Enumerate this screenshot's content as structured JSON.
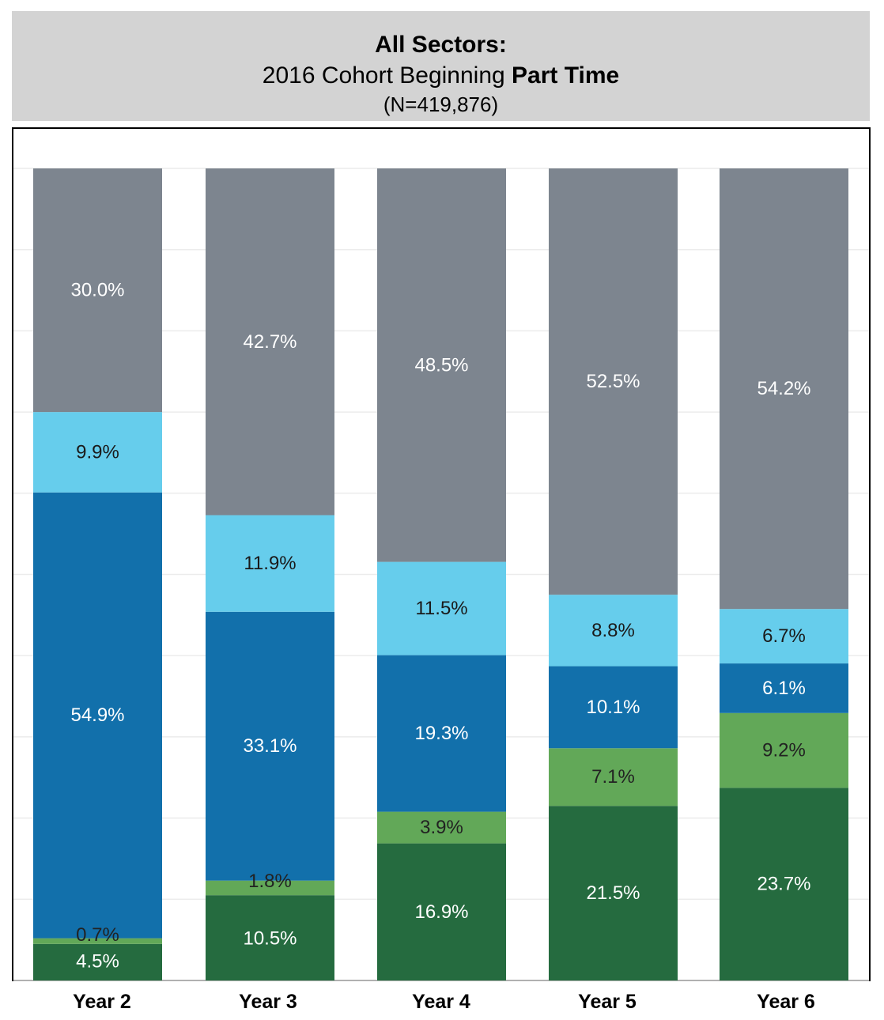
{
  "title": {
    "line1": "All Sectors:",
    "line2_normal": "2016 Cohort Beginning ",
    "line2_bold": "Part Time",
    "line3": "(N=419,876)"
  },
  "chart_data": {
    "type": "bar",
    "stacked": true,
    "categories": [
      "Year 2",
      "Year 3",
      "Year 4",
      "Year 5",
      "Year 6"
    ],
    "ylim": [
      0,
      100
    ],
    "grid": true,
    "legend": "none",
    "series": [
      {
        "color": "#256b3f",
        "label_color": "#ffffff",
        "values": [
          4.5,
          10.5,
          16.9,
          21.5,
          23.7
        ]
      },
      {
        "color": "#62a858",
        "label_color": "#222222",
        "values": [
          0.7,
          1.8,
          3.9,
          7.1,
          9.2
        ]
      },
      {
        "color": "#1270ab",
        "label_color": "#ffffff",
        "values": [
          54.9,
          33.1,
          19.3,
          10.1,
          6.1
        ]
      },
      {
        "color": "#66cdec",
        "label_color": "#1a1a1a",
        "values": [
          9.9,
          11.9,
          11.5,
          8.8,
          6.7
        ]
      },
      {
        "color": "#7d858f",
        "label_color": "#ffffff",
        "values": [
          30.0,
          42.7,
          48.5,
          52.5,
          54.2
        ]
      }
    ],
    "data_labels": [
      [
        "4.5%",
        "10.5%",
        "16.9%",
        "21.5%",
        "23.7%"
      ],
      [
        "0.7%",
        "1.8%",
        "3.9%",
        "7.1%",
        "9.2%"
      ],
      [
        "54.9%",
        "33.1%",
        "19.3%",
        "10.1%",
        "6.1%"
      ],
      [
        "9.9%",
        "11.9%",
        "11.5%",
        "8.8%",
        "6.7%"
      ],
      [
        "30.0%",
        "42.7%",
        "48.5%",
        "52.5%",
        "54.2%"
      ]
    ]
  }
}
